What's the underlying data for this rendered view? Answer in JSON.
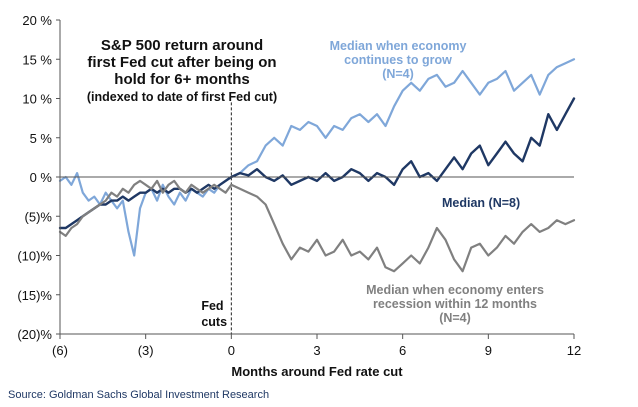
{
  "chart_data": {
    "type": "line",
    "title_lines": [
      "S&P 500 return around",
      "first Fed cut after being on",
      "hold for 6+ months"
    ],
    "subtitle": "(indexed to date of first Fed cut)",
    "xlabel": "Months around Fed rate cut",
    "ylabel": "",
    "xlim": [
      -6,
      12
    ],
    "ylim": [
      -20,
      20
    ],
    "x_ticks": [
      -6,
      -3,
      0,
      3,
      6,
      9,
      12
    ],
    "x_tick_labels": [
      "(6)",
      "(3)",
      "0",
      "3",
      "6",
      "9",
      "12"
    ],
    "y_ticks": [
      20,
      15,
      10,
      5,
      0,
      -5,
      -10,
      -15,
      -20
    ],
    "y_tick_labels": [
      "20 %",
      "15 %",
      "10 %",
      "5 %",
      "0 %",
      "(5)%",
      "(10)%",
      "(15)%",
      "(20)%"
    ],
    "event_line": {
      "x": 0,
      "label_lines": [
        "Fed",
        "cuts"
      ]
    },
    "series": [
      {
        "name": "Median when economy continues to grow (N=4)",
        "label_lines": [
          "Median when economy",
          "continues to grow",
          "(N=4)"
        ],
        "color": "#7fa7d9",
        "x": [
          -6,
          -5.8,
          -5.6,
          -5.4,
          -5.2,
          -5,
          -4.8,
          -4.6,
          -4.4,
          -4.2,
          -4,
          -3.8,
          -3.6,
          -3.4,
          -3.2,
          -3,
          -2.8,
          -2.6,
          -2.4,
          -2.2,
          -2,
          -1.8,
          -1.6,
          -1.4,
          -1.2,
          -1,
          -0.8,
          -0.6,
          -0.4,
          -0.2,
          0,
          0.3,
          0.6,
          0.9,
          1.2,
          1.5,
          1.8,
          2.1,
          2.4,
          2.7,
          3,
          3.3,
          3.6,
          3.9,
          4.2,
          4.5,
          4.8,
          5.1,
          5.4,
          5.7,
          6,
          6.3,
          6.6,
          6.9,
          7.2,
          7.5,
          7.8,
          8.1,
          8.4,
          8.7,
          9,
          9.3,
          9.6,
          9.9,
          10.2,
          10.5,
          10.8,
          11.1,
          11.4,
          11.7,
          12
        ],
        "y": [
          -0.5,
          0,
          -1,
          0.5,
          -2,
          -3,
          -2.5,
          -3.5,
          -2,
          -3,
          -4,
          -3,
          -7,
          -10,
          -4,
          -2,
          -1.5,
          -3,
          -1,
          -2.5,
          -3.5,
          -2,
          -3,
          -1.5,
          -2,
          -2.5,
          -1.5,
          -2,
          -1,
          -0.5,
          0,
          0.5,
          1.5,
          2,
          4,
          5,
          4,
          6.5,
          6,
          7,
          6.5,
          5,
          6.5,
          6,
          7.5,
          8,
          7,
          8,
          6.5,
          9,
          11,
          12,
          11,
          12.5,
          13,
          11.5,
          12,
          13.5,
          12,
          10.5,
          12,
          12.5,
          13.5,
          11,
          12,
          13,
          10.5,
          13,
          14,
          14.5,
          15
        ]
      },
      {
        "name": "Median (N=8)",
        "label_lines": [
          "Median (N=8)"
        ],
        "color": "#1f3864",
        "x": [
          -6,
          -5.8,
          -5.6,
          -5.4,
          -5.2,
          -5,
          -4.8,
          -4.6,
          -4.4,
          -4.2,
          -4,
          -3.8,
          -3.6,
          -3.4,
          -3.2,
          -3,
          -2.8,
          -2.6,
          -2.4,
          -2.2,
          -2,
          -1.8,
          -1.6,
          -1.4,
          -1.2,
          -1,
          -0.8,
          -0.6,
          -0.4,
          -0.2,
          0,
          0.3,
          0.6,
          0.9,
          1.2,
          1.5,
          1.8,
          2.1,
          2.4,
          2.7,
          3,
          3.3,
          3.6,
          3.9,
          4.2,
          4.5,
          4.8,
          5.1,
          5.4,
          5.7,
          6,
          6.3,
          6.6,
          6.9,
          7.2,
          7.5,
          7.8,
          8.1,
          8.4,
          8.7,
          9,
          9.3,
          9.6,
          9.9,
          10.2,
          10.5,
          10.8,
          11.1,
          11.4,
          11.7,
          12
        ],
        "y": [
          -6.5,
          -6.5,
          -6,
          -5.5,
          -5,
          -4.5,
          -4,
          -3.5,
          -3.5,
          -3,
          -3,
          -2.5,
          -3,
          -2.5,
          -2,
          -2,
          -1.5,
          -2,
          -1.5,
          -2,
          -1.5,
          -1.5,
          -2,
          -1.5,
          -2,
          -1.5,
          -1,
          -1.5,
          -1,
          -0.5,
          0,
          0.5,
          0.2,
          1,
          0,
          -0.5,
          0.2,
          -1,
          -0.5,
          0,
          -0.5,
          0.5,
          -0.5,
          0,
          1,
          0.5,
          -0.5,
          0.5,
          0,
          -1,
          1,
          2,
          0,
          0.5,
          -0.5,
          1,
          2.5,
          1,
          3,
          4,
          1.5,
          3,
          4.5,
          3,
          2,
          5,
          4,
          8,
          6,
          8,
          10
        ]
      },
      {
        "name": "Median when economy enters recession within 12 months (N=4)",
        "label_lines": [
          "Median when economy  enters",
          "recession within 12 months",
          "(N=4)"
        ],
        "color": "#808080",
        "x": [
          -6,
          -5.8,
          -5.6,
          -5.4,
          -5.2,
          -5,
          -4.8,
          -4.6,
          -4.4,
          -4.2,
          -4,
          -3.8,
          -3.6,
          -3.4,
          -3.2,
          -3,
          -2.8,
          -2.6,
          -2.4,
          -2.2,
          -2,
          -1.8,
          -1.6,
          -1.4,
          -1.2,
          -1,
          -0.8,
          -0.6,
          -0.4,
          -0.2,
          0,
          0.3,
          0.6,
          0.9,
          1.2,
          1.5,
          1.8,
          2.1,
          2.4,
          2.7,
          3,
          3.3,
          3.6,
          3.9,
          4.2,
          4.5,
          4.8,
          5.1,
          5.4,
          5.7,
          6,
          6.3,
          6.6,
          6.9,
          7.2,
          7.5,
          7.8,
          8.1,
          8.4,
          8.7,
          9,
          9.3,
          9.6,
          9.9,
          10.2,
          10.5,
          10.8,
          11.1,
          11.4,
          11.7,
          12
        ],
        "y": [
          -7,
          -7.5,
          -6.5,
          -6,
          -5,
          -4.5,
          -4,
          -3.5,
          -3,
          -2,
          -2.5,
          -1.5,
          -2,
          -1,
          -0.5,
          -1,
          -1.5,
          -0.5,
          -2,
          -1,
          -0.5,
          -1.5,
          -2,
          -1,
          -1.5,
          -2,
          -1.5,
          -1,
          -1.5,
          -2,
          -1,
          -1.5,
          -2,
          -2.5,
          -3.5,
          -6,
          -8.5,
          -10.5,
          -9,
          -9.5,
          -8,
          -10,
          -9.5,
          -8,
          -10,
          -9.5,
          -10.5,
          -9,
          -11.5,
          -12,
          -11,
          -10,
          -11,
          -9,
          -6.5,
          -8,
          -10.5,
          -12,
          -9,
          -8.5,
          -10,
          -9,
          -7.5,
          -8.5,
          -7,
          -6,
          -7,
          -6.5,
          -5.5,
          -6,
          -5.5
        ]
      }
    ]
  },
  "source": "Source: Goldman Sachs Global Investment Research"
}
